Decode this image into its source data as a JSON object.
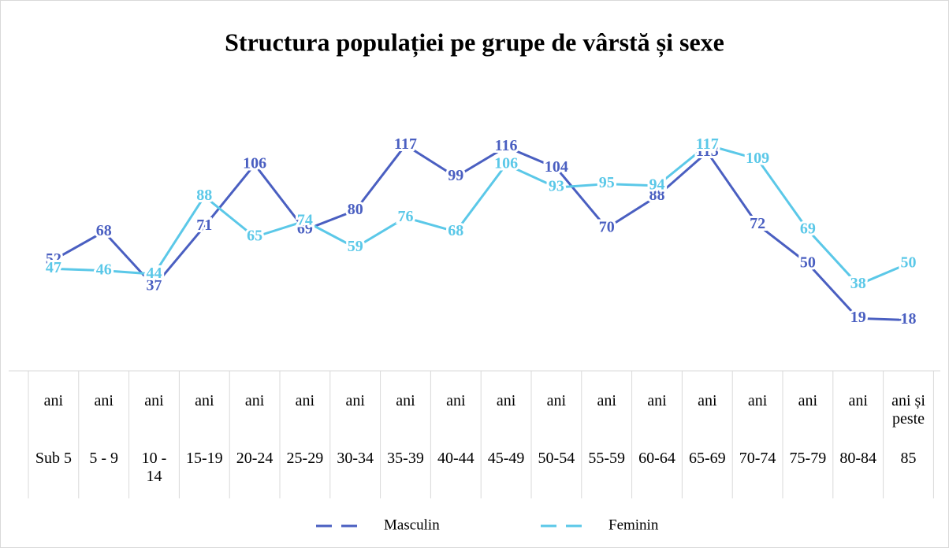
{
  "chart_data": {
    "type": "line",
    "title": "Structura populației pe grupe de vârstă și sexe",
    "categories": [
      [
        "ani",
        "Sub 5"
      ],
      [
        "ani",
        "5 - 9"
      ],
      [
        "ani",
        "10 - 14"
      ],
      [
        "ani",
        "15-19"
      ],
      [
        "ani",
        "20-24"
      ],
      [
        "ani",
        "25-29"
      ],
      [
        "ani",
        "30-34"
      ],
      [
        "ani",
        "35-39"
      ],
      [
        "ani",
        "40-44"
      ],
      [
        "ani",
        "45-49"
      ],
      [
        "ani",
        "50-54"
      ],
      [
        "ani",
        "55-59"
      ],
      [
        "ani",
        "60-64"
      ],
      [
        "ani",
        "65-69"
      ],
      [
        "ani",
        "70-74"
      ],
      [
        "ani",
        "75-79"
      ],
      [
        "ani",
        "80-84"
      ],
      [
        "ani și peste",
        "85"
      ]
    ],
    "series": [
      {
        "name": "Masculin",
        "color": "#4a5fc1",
        "values": [
          52,
          68,
          37,
          71,
          106,
          69,
          80,
          117,
          99,
          116,
          104,
          70,
          88,
          113,
          72,
          50,
          19,
          18
        ]
      },
      {
        "name": "Feminin",
        "color": "#5bc8e8",
        "values": [
          47,
          46,
          44,
          88,
          65,
          74,
          59,
          76,
          68,
          106,
          93,
          95,
          94,
          117,
          109,
          69,
          38,
          50
        ]
      }
    ],
    "ylim": [
      0,
      130
    ]
  }
}
